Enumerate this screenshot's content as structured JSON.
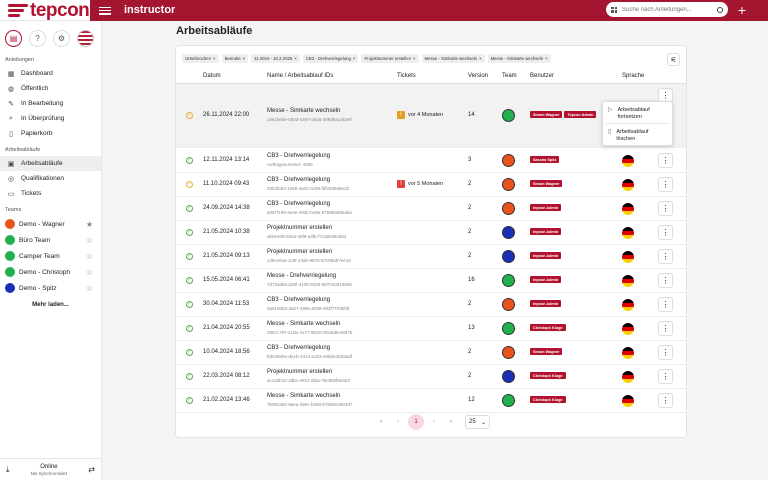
{
  "brand": {
    "logo_text": "tepcon"
  },
  "topbar": {
    "product_prefix": "instructor",
    "product_name": "instructor"
  },
  "search": {
    "placeholder": "Suche nach Anleitungen..."
  },
  "sidebar": {
    "sections": {
      "anleitungen": "Anleitungen",
      "ablaeufe": "Arbeitsabläufe",
      "teams": "Teams"
    },
    "anleitungen": [
      {
        "label": "Dashboard",
        "icon": "dashboard-icon"
      },
      {
        "label": "Öffentlich",
        "icon": "globe-icon"
      },
      {
        "label": "In Bearbeitung",
        "icon": "edit-icon"
      },
      {
        "label": "In Überprüfung",
        "icon": "review-icon"
      },
      {
        "label": "Papierkorb",
        "icon": "trash-icon"
      }
    ],
    "ablaeufe": [
      {
        "label": "Arbeitsabläufe",
        "icon": "workflow-icon"
      },
      {
        "label": "Qualifikationen",
        "icon": "qualification-icon"
      },
      {
        "label": "Tickets",
        "icon": "ticket-icon"
      }
    ],
    "teams": [
      {
        "label": "Demo - Wagner",
        "color": "#e8541c"
      },
      {
        "label": "Büro Team",
        "color": "#21b14e"
      },
      {
        "label": "Camper Team",
        "color": "#21b14e"
      },
      {
        "label": "Demo - Christoph",
        "color": "#21b14e"
      },
      {
        "label": "Demo - Spitz",
        "color": "#1b2fb4"
      }
    ],
    "more": "Mehr laden...",
    "status": "Online",
    "status_sub": "Nie Synchronisiert"
  },
  "page": {
    "title": "Arbeitsabläufe"
  },
  "filters": [
    "Unterbrochen",
    "Beendet",
    "11.2024 - 10.2.2025",
    "CB3 - Drehverriegelung",
    "Projektnummer erstellen",
    "Messe - Simkarte wechseln",
    "Messe - Simkarte wechseln"
  ],
  "columns": {
    "date": "Datum",
    "name": "Name / Arbeitsablauf IDs",
    "tickets": "Tickets",
    "version": "Version",
    "team": "Team",
    "users": "Benutzer",
    "lang": "Sprache"
  },
  "rows": [
    {
      "status": "paused",
      "date": "26.11.2024 22:00",
      "name": "Messe - Simkarte wechseln",
      "id": "c8e1bebe-6833-4497-a5a8-309d6a1ab3ef",
      "ticket": "vor 4 Monaten",
      "ticket_color": "#e0a020",
      "version": "14",
      "team": "green",
      "users": [
        "Simon Wagner",
        "Tepcon Admin"
      ],
      "lang": "de"
    },
    {
      "status": "done",
      "date": "12.11.2024 13:14",
      "name": "CB3 - Drehverriegelung",
      "id": "Auftragsnummer: 4886",
      "ticket": "",
      "version": "3",
      "team": "red",
      "users": [
        "Sascha Spitz"
      ],
      "lang": "de"
    },
    {
      "status": "paused",
      "date": "11.10.2024 09:43",
      "name": "CB3 - Drehverriegelung",
      "id": "03b3fab3-1e80-4a32-ac59-fdf29d8a8ed2",
      "ticket": "vor 5 Monaten",
      "ticket_color": "#e04040",
      "version": "2",
      "team": "red",
      "users": [
        "Simon Wagner"
      ],
      "lang": "de"
    },
    {
      "status": "done",
      "date": "24.09.2024 14:38",
      "name": "CB3 - Drehverriegelung",
      "id": "a057f169-3e4e-492b-b49e-8759ba55eaba",
      "ticket": "",
      "version": "2",
      "team": "red",
      "users": [
        "tepcon Admin"
      ],
      "lang": "de"
    },
    {
      "status": "done",
      "date": "21.05.2024 10:38",
      "name": "Projektnummer erstellen",
      "id": "ab0e409-d2ea-40f9-a3fb-f7ca8e38c564",
      "ticket": "",
      "version": "2",
      "team": "blue",
      "users": [
        "tepcon Admin"
      ],
      "lang": "de"
    },
    {
      "status": "done",
      "date": "21.05.2024 09:13",
      "name": "Projektnummer erstellen",
      "id": "cd5ce94a-1c9f-43ab-9576-57c98ab7ee16",
      "ticket": "",
      "version": "2",
      "team": "blue",
      "users": [
        "tepcon Admin"
      ],
      "lang": "de"
    },
    {
      "status": "done",
      "date": "15.05.2024 06:41",
      "name": "Messe - Drehverriegelung",
      "id": "7d73ad8a-b28f-413b-9100-887e43616556",
      "ticket": "",
      "version": "16",
      "team": "green",
      "users": [
        "tepcon Admin"
      ],
      "lang": "de"
    },
    {
      "status": "done",
      "date": "30.04.2024 11:53",
      "name": "CB3 - Drehverriegelung",
      "id": "0a619d63-3ab7-489e-a038-093f7703bf3f",
      "ticket": "",
      "version": "2",
      "team": "red",
      "users": [
        "tepcon Admin"
      ],
      "lang": "de"
    },
    {
      "status": "done",
      "date": "21.04.2024 20:55",
      "name": "Messe - Simkarte wechseln",
      "id": "285cc797-21de-4177-9bc9-3253a8e4887b",
      "ticket": "",
      "version": "13",
      "team": "green",
      "users": [
        "Christoph Kluge"
      ],
      "lang": "de"
    },
    {
      "status": "done",
      "date": "10.04.2024 18:56",
      "name": "CB3 - Drehverriegelung",
      "id": "bde28ebe-de1b-4314-a1b3-e05be4b0a6df",
      "ticket": "",
      "version": "2",
      "team": "red",
      "users": [
        "Simon Wagner"
      ],
      "lang": "de"
    },
    {
      "status": "done",
      "date": "22.03.2024 08:12",
      "name": "Projektnummer erstellen",
      "id": "ac12ab42-3dbc-4812-af2a-76c905f6e3a3",
      "ticket": "",
      "version": "2",
      "team": "blue",
      "users": [
        "Christoph Kluge"
      ],
      "lang": "de"
    },
    {
      "status": "done",
      "date": "21.02.2024 13:46",
      "name": "Messe - Simkarte wechseln",
      "id": "7b09ca62-8aea-490c-be80-b7b60ce903d7",
      "ticket": "",
      "version": "12",
      "team": "green",
      "users": [
        "Christoph Kluge"
      ],
      "lang": "de"
    }
  ],
  "context_menu": [
    {
      "label": "Arbeitsablauf fortsetzen",
      "icon": "play-icon"
    },
    {
      "label": "Arbeitsablauf löschen",
      "icon": "trash-icon"
    }
  ],
  "pagination": {
    "current": "1",
    "page_size": "25"
  },
  "colors": {
    "brand": "#a4152f",
    "badge": "#b3122f",
    "team_green": "#21b14e",
    "team_red": "#e8541c",
    "team_blue": "#1b2fb4"
  }
}
